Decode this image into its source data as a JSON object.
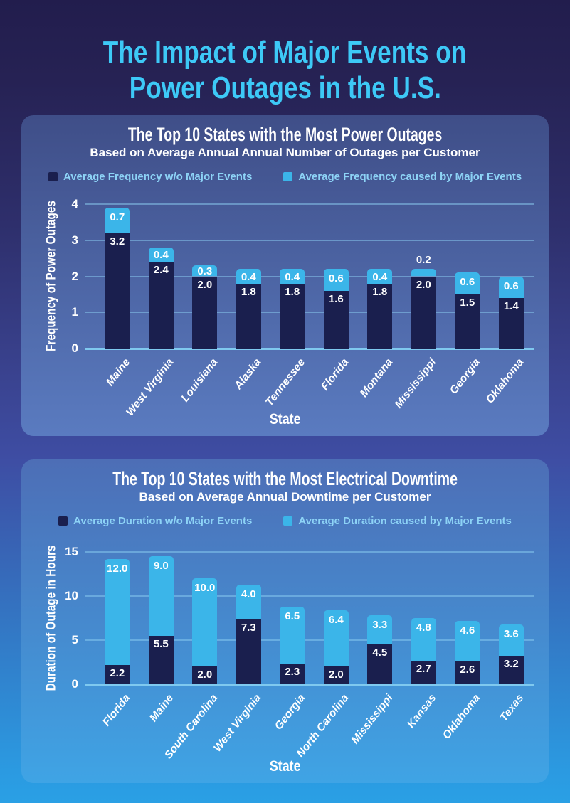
{
  "page": {
    "title_lines": [
      "The Impact of Major Events on",
      "Power Outages in the U.S."
    ],
    "title_color": "#3dc9f7",
    "background_top": "#221d4d",
    "background_bottom": "#2aa0e5"
  },
  "chart_data": [
    {
      "type": "bar",
      "stacked": true,
      "title": "The Top 10 States with the Most Power Outages",
      "subtitle": "Based on Average Annual Annual Number of Outages per Customer",
      "xlabel": "State",
      "ylabel": "Frequency of Power Outages",
      "ylim": [
        0,
        4
      ],
      "yticks": [
        0,
        1,
        2,
        3,
        4
      ],
      "grid": true,
      "legend_position": "top",
      "categories": [
        "Maine",
        "West Virginia",
        "Louisiana",
        "Alaska",
        "Tennessee",
        "Florida",
        "Montana",
        "Mississippi",
        "Georgia",
        "Oklahoma"
      ],
      "series": [
        {
          "name": "Average Frequency w/o Major Events",
          "color": "#1a1f4e",
          "values": [
            3.2,
            2.4,
            2.0,
            1.8,
            1.8,
            1.6,
            1.8,
            2.0,
            1.5,
            1.4
          ]
        },
        {
          "name": "Average Frequency caused by Major Events",
          "color": "#3bb5e9",
          "values": [
            0.7,
            0.4,
            0.3,
            0.4,
            0.4,
            0.6,
            0.4,
            0.2,
            0.6,
            0.6
          ]
        }
      ]
    },
    {
      "type": "bar",
      "stacked": true,
      "title": "The Top 10 States with the Most Electrical Downtime",
      "subtitle": "Based on Average Annual Downtime per Customer",
      "xlabel": "State",
      "ylabel": "Duration of Outage in Hours",
      "ylim": [
        0,
        15
      ],
      "yticks": [
        0,
        5,
        10,
        15
      ],
      "grid": true,
      "legend_position": "top",
      "categories": [
        "Florida",
        "Maine",
        "South Carolina",
        "West Virginia",
        "Georgia",
        "North Carolina",
        "Mississippi",
        "Kansas",
        "Oklahoma",
        "Texas"
      ],
      "series": [
        {
          "name": "Average Duration w/o Major Events",
          "color": "#1a1f4e",
          "values": [
            2.2,
            5.5,
            2.0,
            7.3,
            2.3,
            2.0,
            4.5,
            2.7,
            2.6,
            3.2
          ]
        },
        {
          "name": "Average Duration caused by Major Events",
          "color": "#3bb5e9",
          "values": [
            12.0,
            9.0,
            10.0,
            4.0,
            6.5,
            6.4,
            3.3,
            4.8,
            4.6,
            3.6
          ]
        }
      ]
    }
  ]
}
